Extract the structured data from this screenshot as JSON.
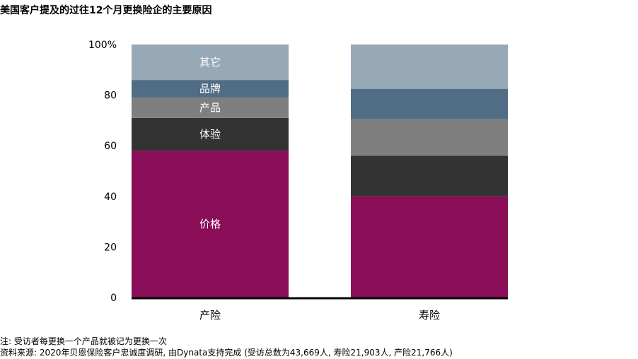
{
  "title": "美国客户提及的过往12个月更换险企的主要原因",
  "footnotes": {
    "note": "注: 受访者每更换一个产品就被记为更换一次",
    "source": "资料来源: 2020年贝恩保险客户忠诚度调研, 由Dynata支持完成 (受访总数为43,669人, 寿险21,903人, 产险21,766人)"
  },
  "chart_data": {
    "type": "bar",
    "stacked": true,
    "title": "美国客户提及的过往12个月更换险企的主要原因",
    "categories": [
      "产险",
      "寿险"
    ],
    "yticks": [
      "0",
      "20",
      "40",
      "60",
      "80",
      "100%"
    ],
    "ylim": [
      0,
      100
    ],
    "grid": false,
    "series": [
      {
        "name": "价格",
        "color": "#890d57",
        "values": [
          58,
          40
        ]
      },
      {
        "name": "体验",
        "color": "#333333",
        "values": [
          13,
          16
        ]
      },
      {
        "name": "产品",
        "color": "#7f7f7f",
        "values": [
          8,
          14.5
        ]
      },
      {
        "name": "品牌",
        "color": "#506d85",
        "values": [
          7,
          12
        ]
      },
      {
        "name": "其它",
        "color": "#97a8b6",
        "values": [
          14,
          17.5
        ]
      }
    ],
    "label_color": "#ffffff",
    "axis_color": "#000000"
  }
}
